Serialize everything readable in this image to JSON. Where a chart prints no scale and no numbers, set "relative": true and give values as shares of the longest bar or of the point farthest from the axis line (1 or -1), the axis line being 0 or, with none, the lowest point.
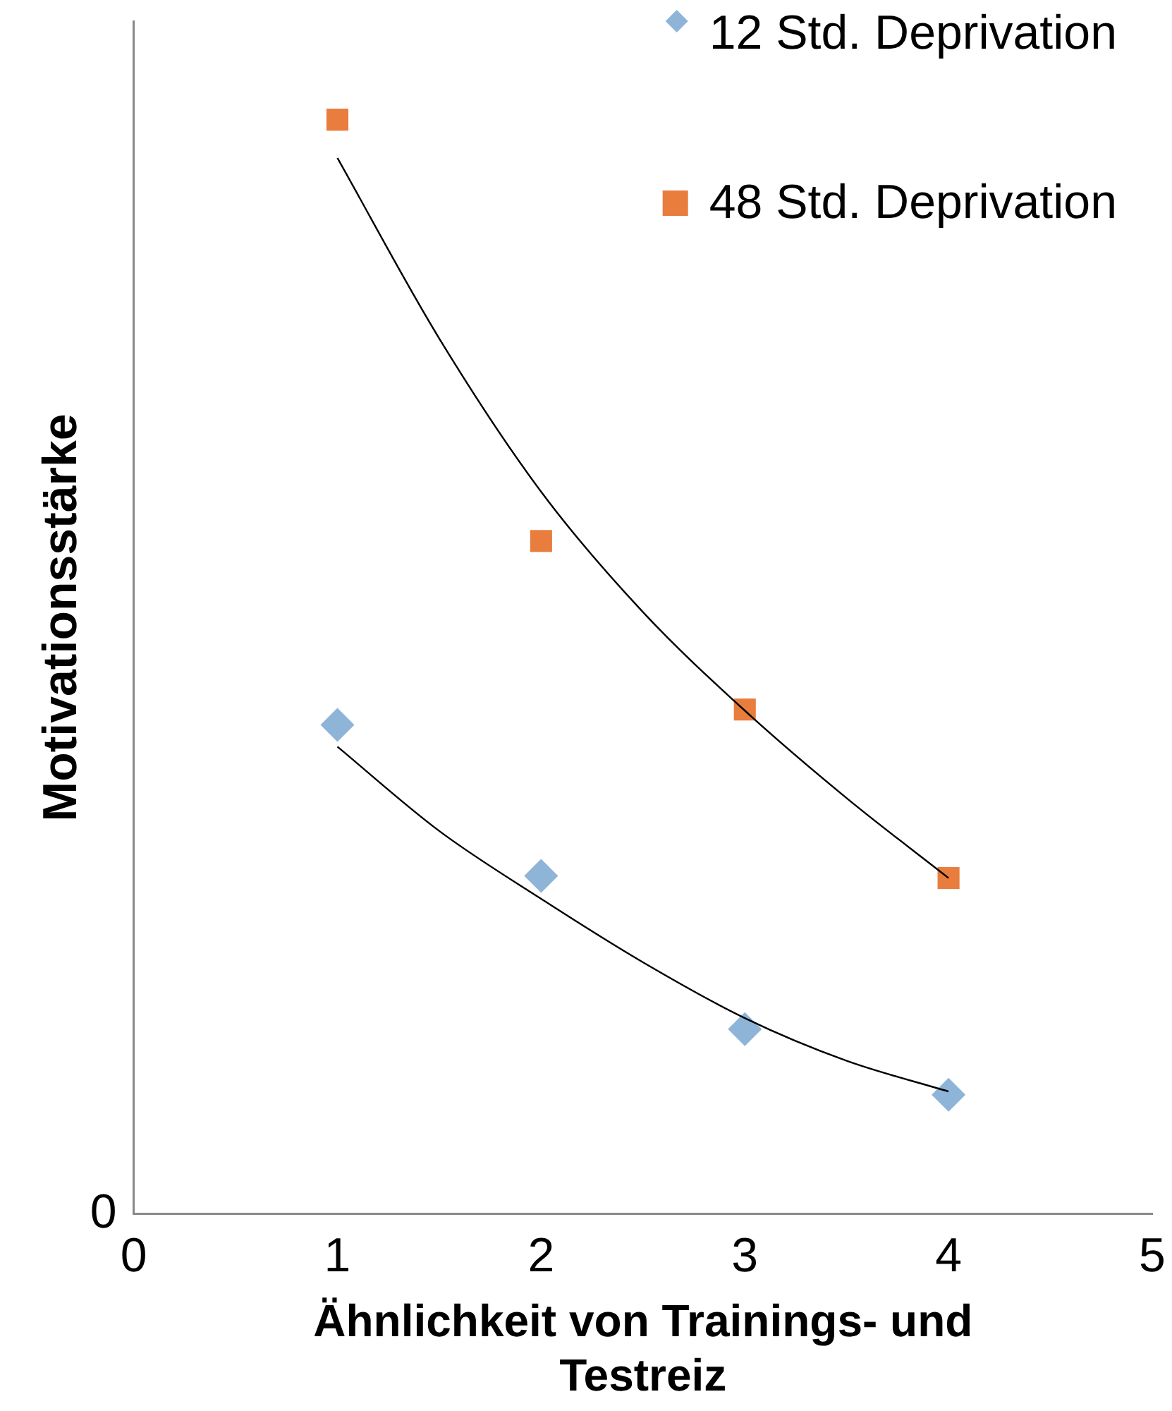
{
  "chart_data": {
    "type": "scatter",
    "xlabel": "Ähnlichkeit von Trainings- und Testreiz",
    "ylabel": "Motivationsstärke",
    "relative": true,
    "xlim": [
      0,
      5
    ],
    "xticks": [
      0,
      1,
      2,
      3,
      4,
      5
    ],
    "grid": false,
    "legend": "top right",
    "annotations": [
      "0"
    ],
    "series": [
      {
        "name": "12 Std. Deprivation",
        "color": "#8eb4d8",
        "marker": "diamond",
        "x": [
          1,
          2,
          3,
          4
        ],
        "values": [
          0.447,
          0.309,
          0.169,
          0.109
        ]
      },
      {
        "name": "48 Std. Deprivation",
        "color": "#e87d3e",
        "marker": "square",
        "x": [
          1,
          2,
          3,
          4
        ],
        "values": [
          1,
          0.615,
          0.461,
          0.307
        ]
      },
      {
        "type": "line",
        "color": "#000000",
        "marker": "none",
        "x": [
          1,
          1.5,
          2,
          2.5,
          3,
          3.5,
          4
        ],
        "values": [
          0.427,
          0.35,
          0.288,
          0.23,
          0.179,
          0.14,
          0.112
        ]
      },
      {
        "type": "line",
        "color": "#000000",
        "marker": "none",
        "x": [
          1,
          1.5,
          2,
          2.5,
          3,
          3.5,
          4
        ],
        "values": [
          0.965,
          0.8,
          0.66,
          0.55,
          0.46,
          0.38,
          0.307
        ]
      }
    ]
  }
}
